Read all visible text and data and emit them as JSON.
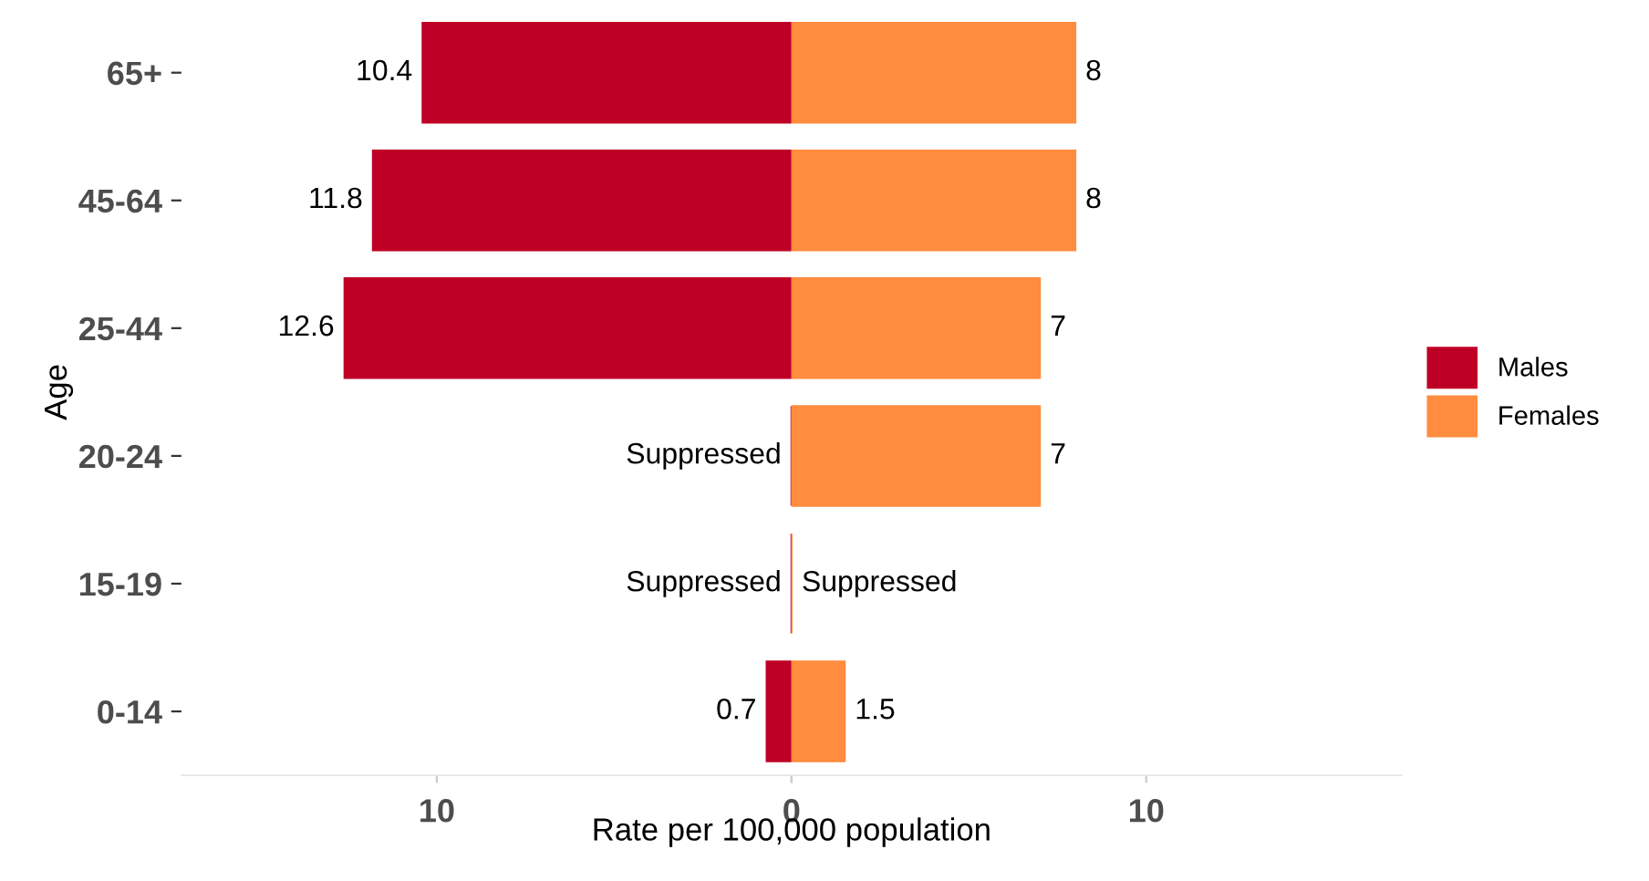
{
  "chart_data": [
    {
      "type": "bar",
      "orientation": "horizontal",
      "xlabel": "Rate per 100,000 population",
      "ylabel": "Age",
      "categories": [
        "65+",
        "45-64",
        "25-44",
        "20-24",
        "15-19",
        "0-14"
      ],
      "series": [
        {
          "name": "Males",
          "color": "#bf0026",
          "values": [
            10.4,
            11.8,
            12.6,
            0,
            0,
            0.7
          ],
          "value_labels": [
            "10.4",
            "11.8",
            "12.6",
            "Suppressed",
            "Suppressed",
            "0.7"
          ]
        }
      ],
      "xlim": [
        17.2,
        0
      ],
      "xticks": [
        10,
        0
      ],
      "grid": false
    },
    {
      "type": "bar",
      "orientation": "horizontal",
      "series": [
        {
          "name": "Females",
          "color": "#ff8c3f",
          "values": [
            8,
            8,
            7,
            7,
            0,
            1.5
          ],
          "value_labels": [
            "8",
            "8",
            "7",
            "7",
            "Suppressed",
            "1.5"
          ]
        }
      ],
      "xlim": [
        0,
        17.2
      ],
      "xticks": [
        {
          "value": 0,
          "label": null
        },
        10
      ],
      "tick_labels": "x",
      "grid": false,
      "legend": "right"
    }
  ]
}
